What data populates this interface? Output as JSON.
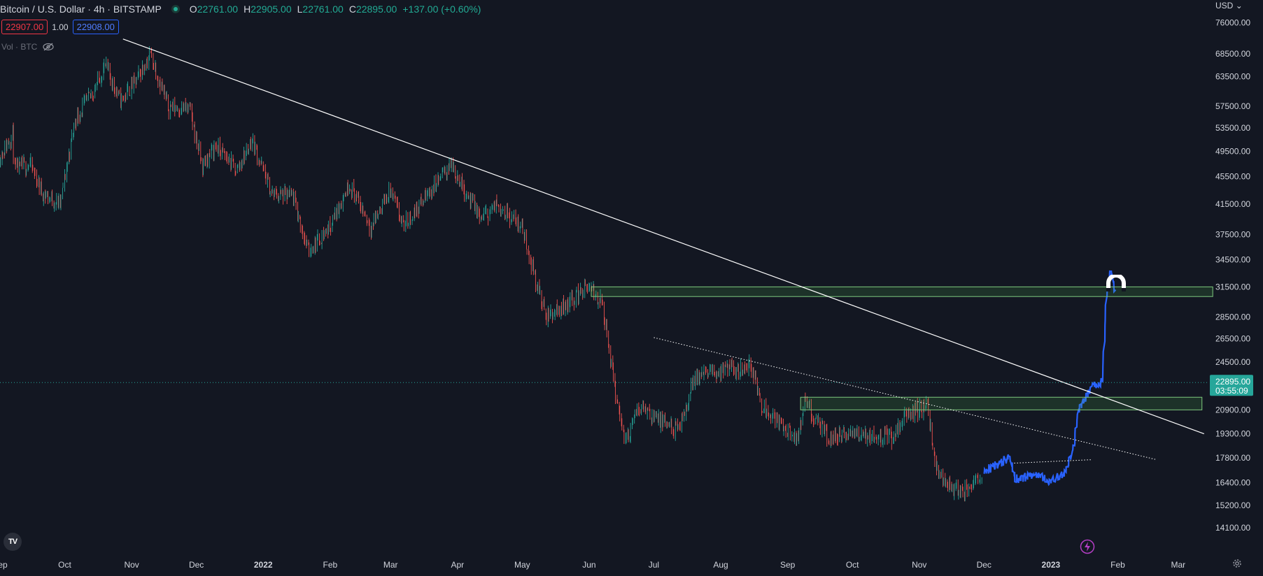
{
  "header": {
    "symbol": "Bitcoin / U.S. Dollar · 4h · BITSTAMP",
    "o_label": "O",
    "o_value": "22761.00",
    "h_label": "H",
    "h_value": "22905.00",
    "l_label": "L",
    "l_value": "22761.00",
    "c_label": "C",
    "c_value": "22895.00",
    "change": "+137.00 (+0.60%)"
  },
  "quote": {
    "sell": "22907.00",
    "spread": "1.00",
    "buy": "22908.00"
  },
  "volume_label": "Vol · BTC",
  "currency": "USD",
  "logo_text": "TV",
  "current_price": {
    "value": "22895.00",
    "countdown": "03:55:09"
  },
  "colors": {
    "up": "#26a69a",
    "down": "#ef5350",
    "projection": "#2962ff",
    "zone": "#7ec97e",
    "trendline": "#ffffff",
    "background": "#131722"
  },
  "icons": [
    "eye-slash-icon",
    "magnet-icon",
    "lightning-icon",
    "gear-icon",
    "chevron-down-icon"
  ],
  "chart_data": {
    "type": "line",
    "title": "",
    "xlabel": "",
    "ylabel": "",
    "y_scale": "log",
    "ylim": [
      13000,
      82000
    ],
    "x_range": [
      "2021-09-01",
      "2023-03-15"
    ],
    "x_ticks": [
      {
        "label": "Sep",
        "date": "2021-09-01"
      },
      {
        "label": "Oct",
        "date": "2021-10-01"
      },
      {
        "label": "Nov",
        "date": "2021-11-01"
      },
      {
        "label": "Dec",
        "date": "2021-12-01"
      },
      {
        "label": "2022",
        "date": "2022-01-01"
      },
      {
        "label": "Feb",
        "date": "2022-02-01"
      },
      {
        "label": "Mar",
        "date": "2022-03-01"
      },
      {
        "label": "Apr",
        "date": "2022-04-01"
      },
      {
        "label": "May",
        "date": "2022-05-01"
      },
      {
        "label": "Jun",
        "date": "2022-06-01"
      },
      {
        "label": "Jul",
        "date": "2022-07-01"
      },
      {
        "label": "Aug",
        "date": "2022-08-01"
      },
      {
        "label": "Sep",
        "date": "2022-09-01"
      },
      {
        "label": "Oct",
        "date": "2022-10-01"
      },
      {
        "label": "Nov",
        "date": "2022-11-01"
      },
      {
        "label": "Dec",
        "date": "2022-12-01"
      },
      {
        "label": "2023",
        "date": "2023-01-01"
      },
      {
        "label": "Feb",
        "date": "2023-02-01"
      },
      {
        "label": "Mar",
        "date": "2023-03-01"
      }
    ],
    "y_ticks": [
      "76000.00",
      "68500.00",
      "63500.00",
      "57500.00",
      "53500.00",
      "49500.00",
      "45500.00",
      "41500.00",
      "37500.00",
      "34500.00",
      "31500.00",
      "28500.00",
      "26500.00",
      "24500.00",
      "20900.00",
      "19300.00",
      "17800.00",
      "16400.00",
      "15200.00",
      "14100.00"
    ],
    "series": [
      {
        "kind": "price-historical",
        "points": [
          [
            "2021-09-01",
            48500
          ],
          [
            "2021-09-07",
            52500
          ],
          [
            "2021-09-08",
            46500
          ],
          [
            "2021-09-15",
            47500
          ],
          [
            "2021-09-21",
            43000
          ],
          [
            "2021-09-29",
            41500
          ],
          [
            "2021-10-06",
            55000
          ],
          [
            "2021-10-15",
            61000
          ],
          [
            "2021-10-20",
            66000
          ],
          [
            "2021-10-27",
            58500
          ],
          [
            "2021-11-03",
            62500
          ],
          [
            "2021-11-10",
            68500
          ],
          [
            "2021-11-18",
            57500
          ],
          [
            "2021-11-28",
            57000
          ],
          [
            "2021-12-04",
            47000
          ],
          [
            "2021-12-10",
            50500
          ],
          [
            "2021-12-20",
            46500
          ],
          [
            "2021-12-27",
            51500
          ],
          [
            "2022-01-05",
            43000
          ],
          [
            "2022-01-15",
            42500
          ],
          [
            "2022-01-22",
            35500
          ],
          [
            "2022-02-01",
            38500
          ],
          [
            "2022-02-10",
            44500
          ],
          [
            "2022-02-20",
            38500
          ],
          [
            "2022-03-01",
            43500
          ],
          [
            "2022-03-07",
            38500
          ],
          [
            "2022-03-29",
            47500
          ],
          [
            "2022-04-12",
            39500
          ],
          [
            "2022-04-20",
            41500
          ],
          [
            "2022-05-01",
            38500
          ],
          [
            "2022-05-12",
            28500
          ],
          [
            "2022-05-20",
            29500
          ],
          [
            "2022-05-31",
            31500
          ],
          [
            "2022-06-07",
            30000
          ],
          [
            "2022-06-13",
            22500
          ],
          [
            "2022-06-18",
            18800
          ],
          [
            "2022-06-25",
            21300
          ],
          [
            "2022-07-05",
            20000
          ],
          [
            "2022-07-13",
            19500
          ],
          [
            "2022-07-20",
            23300
          ],
          [
            "2022-07-29",
            23700
          ],
          [
            "2022-08-10",
            24000
          ],
          [
            "2022-08-15",
            24300
          ],
          [
            "2022-08-20",
            21300
          ],
          [
            "2022-09-06",
            18800
          ],
          [
            "2022-09-09",
            21500
          ],
          [
            "2022-09-14",
            20200
          ],
          [
            "2022-09-20",
            19000
          ],
          [
            "2022-10-01",
            19300
          ],
          [
            "2022-10-10",
            19200
          ],
          [
            "2022-10-20",
            19100
          ],
          [
            "2022-10-26",
            20600
          ],
          [
            "2022-11-05",
            21200
          ],
          [
            "2022-11-09",
            17000
          ],
          [
            "2022-11-21",
            15700
          ],
          [
            "2022-11-30",
            17000
          ]
        ]
      },
      {
        "kind": "price-projection",
        "points": [
          [
            "2022-12-01",
            17000
          ],
          [
            "2022-12-13",
            17800
          ],
          [
            "2022-12-16",
            16600
          ],
          [
            "2022-12-25",
            16800
          ],
          [
            "2023-01-01",
            16500
          ],
          [
            "2023-01-08",
            17000
          ],
          [
            "2023-01-12",
            18500
          ],
          [
            "2023-01-14",
            20900
          ],
          [
            "2023-01-20",
            22500
          ],
          [
            "2023-01-25",
            23000
          ],
          [
            "2023-01-27",
            30500
          ],
          [
            "2023-01-29",
            33500
          ],
          [
            "2023-01-31",
            31000
          ]
        ]
      }
    ],
    "trendlines": [
      {
        "style": "solid",
        "from": [
          "2021-10-28",
          72000
        ],
        "to": [
          "2023-03-13",
          19300
        ]
      },
      {
        "style": "dotted",
        "from": [
          "2022-07-01",
          26600
        ],
        "to": [
          "2023-02-19",
          17700
        ]
      },
      {
        "style": "dotted",
        "from": [
          "2022-12-15",
          17500
        ],
        "to": [
          "2023-01-20",
          17700
        ]
      }
    ],
    "zones": [
      {
        "from": "2022-06-02",
        "to": "2023-03-17",
        "low": 30500,
        "high": 31500
      },
      {
        "from": "2022-09-07",
        "to": "2023-03-12",
        "low": 20900,
        "high": 21800
      }
    ]
  }
}
